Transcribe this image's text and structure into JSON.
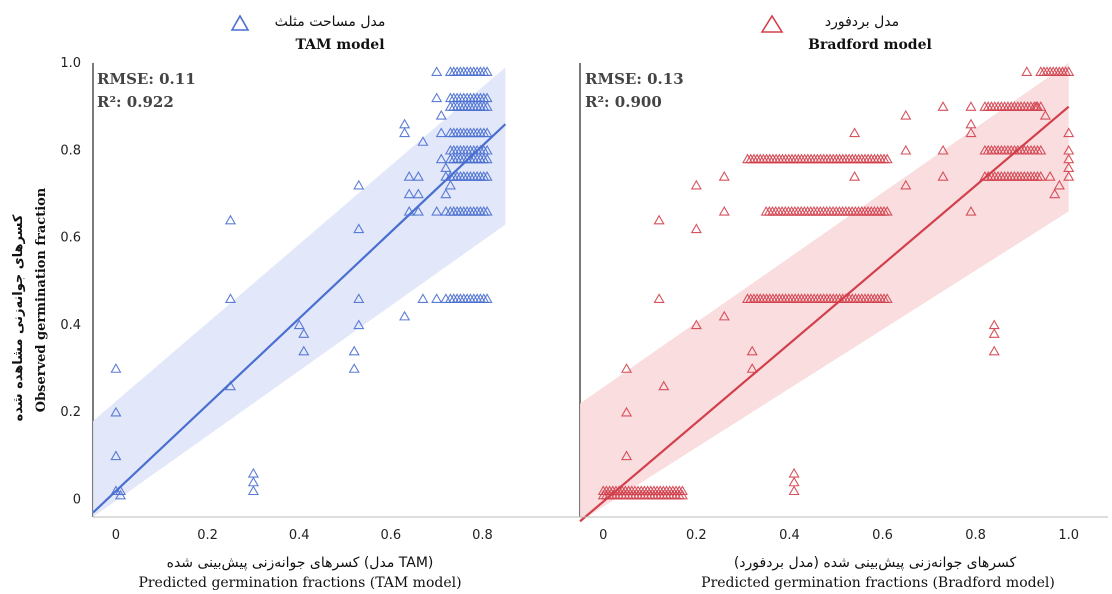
{
  "y_axis": {
    "label_fa": "کسرهای جوانه‌زنی مشاهده شده",
    "label_en": "Observed germination fraction"
  },
  "chart_data": [
    {
      "type": "scatter",
      "legend": {
        "label_fa": "مدل مساحت مثلث",
        "label_en": "TAM model",
        "marker": "triangle"
      },
      "color": "#4a6fd0",
      "band_color": "#dfe6f8",
      "stats": {
        "rmse": "RMSE: 0.11",
        "r2": "R²: 0.922"
      },
      "xlabel_fa": "کسرهای جوانه‌زنی پیش‌بینی شده (مدل TAM)",
      "xlabel_en": "Predicted germination fractions (TAM model)",
      "xlim": [
        -0.05,
        0.86
      ],
      "ylim": [
        -0.04,
        1.0
      ],
      "xticks": [
        0,
        0.2,
        0.4,
        0.6,
        0.8
      ],
      "yticks": [
        0,
        0.2,
        0.4,
        0.6,
        0.8,
        1.0
      ],
      "fit_line": {
        "x": [
          -0.05,
          0.85
        ],
        "y": [
          -0.03,
          0.86
        ]
      },
      "band": {
        "x": [
          -0.05,
          0.85
        ],
        "upper": [
          0.18,
          0.99
        ],
        "lower": [
          -0.04,
          0.63
        ]
      },
      "points": [
        [
          0,
          0.3
        ],
        [
          0,
          0.2
        ],
        [
          0,
          0.1
        ],
        [
          0,
          0.02
        ],
        [
          0.01,
          0.01
        ],
        [
          0.01,
          0.02
        ],
        [
          0.25,
          0.64
        ],
        [
          0.25,
          0.46
        ],
        [
          0.25,
          0.26
        ],
        [
          0.3,
          0.06
        ],
        [
          0.3,
          0.04
        ],
        [
          0.3,
          0.02
        ],
        [
          0.4,
          0.4
        ],
        [
          0.41,
          0.38
        ],
        [
          0.41,
          0.34
        ],
        [
          0.53,
          0.72
        ],
        [
          0.53,
          0.62
        ],
        [
          0.53,
          0.46
        ],
        [
          0.53,
          0.4
        ],
        [
          0.52,
          0.34
        ],
        [
          0.52,
          0.3
        ],
        [
          0.63,
          0.86
        ],
        [
          0.63,
          0.84
        ],
        [
          0.63,
          0.42
        ],
        [
          0.64,
          0.74
        ],
        [
          0.64,
          0.7
        ],
        [
          0.64,
          0.66
        ],
        [
          0.66,
          0.74
        ],
        [
          0.66,
          0.7
        ],
        [
          0.66,
          0.66
        ],
        [
          0.67,
          0.82
        ],
        [
          0.67,
          0.46
        ],
        [
          0.7,
          0.98
        ],
        [
          0.7,
          0.92
        ],
        [
          0.71,
          0.88
        ],
        [
          0.71,
          0.84
        ],
        [
          0.71,
          0.78
        ],
        [
          0.72,
          0.76
        ],
        [
          0.72,
          0.74
        ],
        [
          0.72,
          0.7
        ],
        [
          0.73,
          0.72
        ],
        [
          0.7,
          0.66
        ],
        [
          0.72,
          0.66
        ],
        [
          0.7,
          0.46
        ],
        [
          0.72,
          0.46
        ]
      ],
      "clusters": [
        {
          "x0": 0.73,
          "x1": 0.81,
          "y": 0.98
        },
        {
          "x0": 0.73,
          "x1": 0.81,
          "y": 0.92
        },
        {
          "x0": 0.73,
          "x1": 0.81,
          "y": 0.9
        },
        {
          "x0": 0.73,
          "x1": 0.81,
          "y": 0.84
        },
        {
          "x0": 0.73,
          "x1": 0.81,
          "y": 0.8
        },
        {
          "x0": 0.73,
          "x1": 0.81,
          "y": 0.78
        },
        {
          "x0": 0.73,
          "x1": 0.81,
          "y": 0.74
        },
        {
          "x0": 0.73,
          "x1": 0.81,
          "y": 0.66
        },
        {
          "x0": 0.73,
          "x1": 0.81,
          "y": 0.46
        }
      ]
    },
    {
      "type": "scatter",
      "legend": {
        "label_fa": "مدل بردفورد",
        "label_en": "Bradford model",
        "marker": "triangle"
      },
      "color": "#d2404c",
      "band_color": "#f8d9dc",
      "stats": {
        "rmse": "RMSE: 0.13",
        "r2": "R²: 0.900"
      },
      "xlabel_fa": "کسرهای جوانه‌زنی پیش‌بینی شده (مدل بردفورد)",
      "xlabel_en": "Predicted germination fractions (Bradford model)",
      "xlim": [
        -0.05,
        1.02
      ],
      "ylim": [
        -0.04,
        1.0
      ],
      "xticks": [
        0,
        0.2,
        0.4,
        0.6,
        0.8,
        1.0
      ],
      "yticks": [],
      "fit_line": {
        "x": [
          -0.05,
          1.0
        ],
        "y": [
          -0.05,
          0.9
        ]
      },
      "band": {
        "x": [
          -0.05,
          1.0
        ],
        "upper": [
          0.22,
          1.0
        ],
        "lower": [
          -0.05,
          0.66
        ]
      },
      "points": [
        [
          0.05,
          0.3
        ],
        [
          0.05,
          0.2
        ],
        [
          0.05,
          0.1
        ],
        [
          0.12,
          0.64
        ],
        [
          0.12,
          0.46
        ],
        [
          0.13,
          0.26
        ],
        [
          0.2,
          0.72
        ],
        [
          0.2,
          0.62
        ],
        [
          0.2,
          0.4
        ],
        [
          0.26,
          0.74
        ],
        [
          0.26,
          0.66
        ],
        [
          0.26,
          0.42
        ],
        [
          0.32,
          0.34
        ],
        [
          0.32,
          0.3
        ],
        [
          0.41,
          0.06
        ],
        [
          0.41,
          0.04
        ],
        [
          0.41,
          0.02
        ],
        [
          0.54,
          0.84
        ],
        [
          0.54,
          0.74
        ],
        [
          0.65,
          0.88
        ],
        [
          0.65,
          0.8
        ],
        [
          0.65,
          0.72
        ],
        [
          0.73,
          0.9
        ],
        [
          0.73,
          0.8
        ],
        [
          0.73,
          0.74
        ],
        [
          0.79,
          0.9
        ],
        [
          0.79,
          0.86
        ],
        [
          0.79,
          0.84
        ],
        [
          0.79,
          0.66
        ],
        [
          0.84,
          0.4
        ],
        [
          0.84,
          0.38
        ],
        [
          0.84,
          0.34
        ],
        [
          0.91,
          0.98
        ],
        [
          0.93,
          0.9
        ],
        [
          0.95,
          0.88
        ],
        [
          0.96,
          0.74
        ],
        [
          0.97,
          0.7
        ],
        [
          0.98,
          0.72
        ],
        [
          1.0,
          0.84
        ],
        [
          1.0,
          0.8
        ],
        [
          1.0,
          0.78
        ],
        [
          1.0,
          0.76
        ],
        [
          1.0,
          0.74
        ]
      ],
      "clusters": [
        {
          "x0": 0.0,
          "x1": 0.17,
          "y": 0.02
        },
        {
          "x0": 0.0,
          "x1": 0.17,
          "y": 0.01
        },
        {
          "x0": 0.31,
          "x1": 0.61,
          "y": 0.78
        },
        {
          "x0": 0.35,
          "x1": 0.61,
          "y": 0.66
        },
        {
          "x0": 0.31,
          "x1": 0.61,
          "y": 0.46
        },
        {
          "x0": 0.82,
          "x1": 0.94,
          "y": 0.9
        },
        {
          "x0": 0.82,
          "x1": 0.94,
          "y": 0.8
        },
        {
          "x0": 0.82,
          "x1": 0.94,
          "y": 0.74
        },
        {
          "x0": 0.94,
          "x1": 1.0,
          "y": 0.98
        }
      ]
    }
  ]
}
